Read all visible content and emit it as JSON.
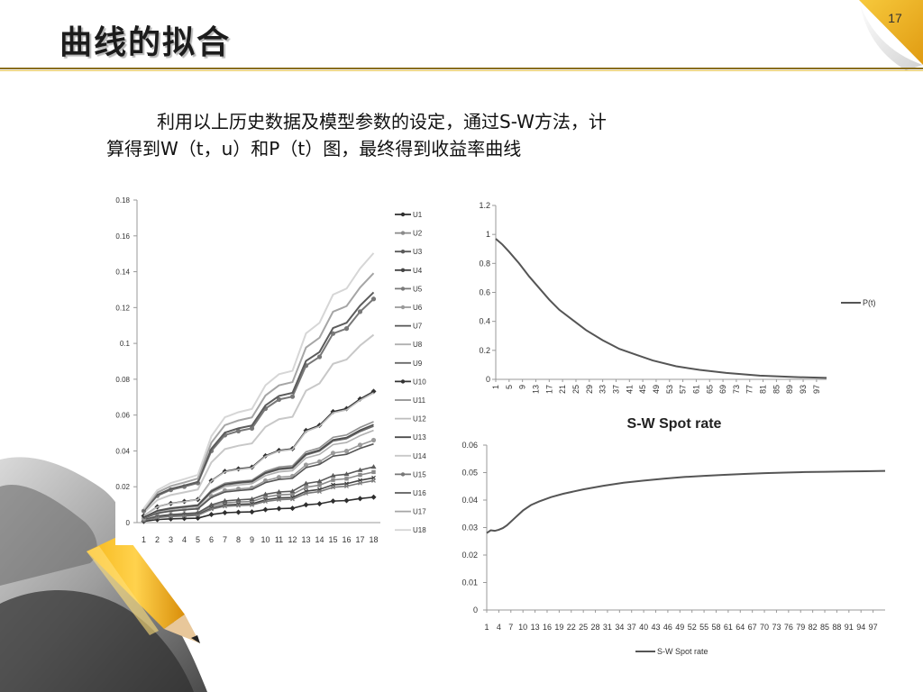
{
  "slide": {
    "title": "曲线的拟合",
    "page_number": "17",
    "paragraph_line1": "利用以上历史数据及模型参数的设定，通过S-W方法，计",
    "paragraph_line2": "算得到W（t，u）和P（t）图，最终得到收益率曲线"
  },
  "chart_data": [
    {
      "type": "line",
      "title": "",
      "xlabel": "",
      "ylabel": "",
      "ylim": [
        0,
        0.18
      ],
      "y_ticks": [
        "0",
        "0.02",
        "0.04",
        "0.06",
        "0.08",
        "0.1",
        "0.12",
        "0.14",
        "0.16",
        "0.18"
      ],
      "categories": [
        "1",
        "2",
        "3",
        "4",
        "5",
        "6",
        "7",
        "8",
        "9",
        "10",
        "11",
        "12",
        "13",
        "14",
        "15",
        "16",
        "17",
        "18"
      ],
      "legend_position": "right",
      "grid": false,
      "series": [
        {
          "name": "U1",
          "values": [
            0.0007,
            0.0017,
            0.0021,
            0.0023,
            0.0025,
            0.0045,
            0.0055,
            0.0058,
            0.006,
            0.0072,
            0.0078,
            0.008,
            0.0099,
            0.0105,
            0.012,
            0.0123,
            0.0134,
            0.0142
          ]
        },
        {
          "name": "U2",
          "values": [
            0.0014,
            0.0033,
            0.0041,
            0.0045,
            0.005,
            0.009,
            0.011,
            0.0115,
            0.0118,
            0.0143,
            0.0155,
            0.0158,
            0.0197,
            0.0209,
            0.0238,
            0.0245,
            0.0266,
            0.0282
          ]
        },
        {
          "name": "U3",
          "values": [
            0.0016,
            0.0037,
            0.0045,
            0.005,
            0.0055,
            0.0099,
            0.0121,
            0.0127,
            0.0131,
            0.0158,
            0.0171,
            0.0175,
            0.0218,
            0.023,
            0.0262,
            0.027,
            0.0293,
            0.0311
          ]
        },
        {
          "name": "U4",
          "values": [
            0.0013,
            0.003,
            0.0036,
            0.004,
            0.0044,
            0.008,
            0.0098,
            0.0102,
            0.0105,
            0.0127,
            0.0138,
            0.014,
            0.0175,
            0.0185,
            0.0211,
            0.0217,
            0.0236,
            0.025
          ]
        },
        {
          "name": "U5",
          "values": [
            0.0012,
            0.0028,
            0.0034,
            0.0037,
            0.0041,
            0.0075,
            0.0091,
            0.0095,
            0.0098,
            0.0118,
            0.0128,
            0.0131,
            0.0163,
            0.0173,
            0.0197,
            0.0203,
            0.022,
            0.0234
          ]
        },
        {
          "name": "U6",
          "values": [
            0.0024,
            0.0055,
            0.0067,
            0.0074,
            0.0081,
            0.0147,
            0.0179,
            0.0188,
            0.0194,
            0.0234,
            0.0253,
            0.0259,
            0.0322,
            0.034,
            0.0388,
            0.0399,
            0.0433,
            0.046
          ]
        },
        {
          "name": "U7",
          "values": [
            0.0023,
            0.0052,
            0.0064,
            0.0071,
            0.0077,
            0.014,
            0.0171,
            0.0179,
            0.0185,
            0.0223,
            0.0241,
            0.0247,
            0.0307,
            0.0325,
            0.0371,
            0.0381,
            0.0414,
            0.0439
          ]
        },
        {
          "name": "U8",
          "values": [
            0.0027,
            0.0062,
            0.0075,
            0.0083,
            0.0091,
            0.0165,
            0.0201,
            0.021,
            0.0217,
            0.0262,
            0.0283,
            0.029,
            0.0361,
            0.0381,
            0.0435,
            0.0447,
            0.0485,
            0.0515
          ]
        },
        {
          "name": "U9",
          "values": [
            0.0028,
            0.0065,
            0.0079,
            0.0087,
            0.0095,
            0.0172,
            0.021,
            0.022,
            0.0227,
            0.0274,
            0.0296,
            0.0303,
            0.0377,
            0.0399,
            0.0455,
            0.0468,
            0.0508,
            0.0538
          ]
        },
        {
          "name": "U10",
          "values": [
            0.0038,
            0.0088,
            0.0107,
            0.0118,
            0.0129,
            0.0234,
            0.0286,
            0.03,
            0.0309,
            0.0373,
            0.0403,
            0.0412,
            0.0514,
            0.0543,
            0.0619,
            0.0636,
            0.069,
            0.0732
          ]
        },
        {
          "name": "U11",
          "values": [
            0.0029,
            0.0068,
            0.0082,
            0.0091,
            0.0099,
            0.018,
            0.022,
            0.023,
            0.0237,
            0.0286,
            0.031,
            0.0317,
            0.0395,
            0.0417,
            0.0476,
            0.0489,
            0.0531,
            0.0563
          ]
        },
        {
          "name": "U12",
          "values": [
            0.0038,
            0.0087,
            0.0106,
            0.0116,
            0.0128,
            0.0232,
            0.0283,
            0.0296,
            0.0305,
            0.0369,
            0.0399,
            0.0408,
            0.0508,
            0.0537,
            0.0612,
            0.0629,
            0.0683,
            0.0724
          ]
        },
        {
          "name": "U13",
          "values": [
            0.0029,
            0.0066,
            0.008,
            0.0088,
            0.0097,
            0.0175,
            0.0213,
            0.0224,
            0.0231,
            0.0278,
            0.0301,
            0.0308,
            0.0383,
            0.0405,
            0.0462,
            0.0475,
            0.0516,
            0.0547
          ]
        },
        {
          "name": "U14",
          "values": [
            0.0055,
            0.0126,
            0.0154,
            0.0169,
            0.0185,
            0.0336,
            0.041,
            0.0429,
            0.0442,
            0.0534,
            0.0577,
            0.059,
            0.0736,
            0.0777,
            0.0886,
            0.091,
            0.0988,
            0.1048
          ]
        },
        {
          "name": "U15",
          "values": [
            0.0065,
            0.015,
            0.0183,
            0.0201,
            0.0221,
            0.04,
            0.0488,
            0.0511,
            0.0526,
            0.0636,
            0.0687,
            0.0703,
            0.0876,
            0.0925,
            0.1055,
            0.1083,
            0.1177,
            0.1248
          ]
        },
        {
          "name": "U16",
          "values": [
            0.0067,
            0.0155,
            0.0188,
            0.0207,
            0.0227,
            0.0412,
            0.0502,
            0.0526,
            0.0542,
            0.0654,
            0.0707,
            0.0724,
            0.0902,
            0.0952,
            0.1086,
            0.1115,
            0.1211,
            0.1285
          ]
        },
        {
          "name": "U17",
          "values": [
            0.0073,
            0.0168,
            0.0204,
            0.0224,
            0.0246,
            0.0446,
            0.0544,
            0.057,
            0.0587,
            0.0709,
            0.0766,
            0.0784,
            0.0977,
            0.1032,
            0.1177,
            0.1208,
            0.1312,
            0.1392
          ]
        },
        {
          "name": "U18",
          "values": [
            0.0079,
            0.0181,
            0.0221,
            0.0243,
            0.0266,
            0.0482,
            0.0588,
            0.0616,
            0.0634,
            0.0766,
            0.0828,
            0.0847,
            0.1056,
            0.1115,
            0.1272,
            0.1306,
            0.1418,
            0.1504
          ]
        }
      ]
    },
    {
      "type": "line",
      "title": "",
      "xlabel": "",
      "ylabel": "",
      "ylim": [
        0,
        1.2
      ],
      "y_ticks": [
        "0",
        "0.2",
        "0.4",
        "0.6",
        "0.8",
        "1",
        "1.2"
      ],
      "x_range": [
        1,
        100
      ],
      "x_tick_labels": [
        "1",
        "5",
        "9",
        "13",
        "17",
        "21",
        "25",
        "29",
        "33",
        "37",
        "41",
        "45",
        "49",
        "53",
        "57",
        "61",
        "65",
        "69",
        "73",
        "77",
        "81",
        "85",
        "89",
        "93",
        "97"
      ],
      "legend_position": "right",
      "grid": false,
      "series": [
        {
          "name": "P(t)",
          "x": [
            1,
            3,
            5,
            8,
            11,
            14,
            17,
            20,
            24,
            28,
            33,
            38,
            43,
            48,
            55,
            62,
            70,
            80,
            90,
            100
          ],
          "values": [
            0.97,
            0.93,
            0.88,
            0.8,
            0.71,
            0.63,
            0.55,
            0.48,
            0.41,
            0.34,
            0.27,
            0.21,
            0.17,
            0.13,
            0.09,
            0.065,
            0.044,
            0.026,
            0.016,
            0.01
          ]
        }
      ]
    },
    {
      "type": "line",
      "title": "S-W Spot rate",
      "xlabel": "",
      "ylabel": "",
      "ylim": [
        0,
        0.06
      ],
      "y_ticks": [
        "0",
        "0.01",
        "0.02",
        "0.03",
        "0.04",
        "0.05",
        "0.06"
      ],
      "x_range": [
        1,
        100
      ],
      "x_tick_labels": [
        "1",
        "4",
        "7",
        "10",
        "13",
        "16",
        "19",
        "22",
        "25",
        "28",
        "31",
        "34",
        "37",
        "40",
        "43",
        "46",
        "49",
        "52",
        "55",
        "58",
        "61",
        "64",
        "67",
        "70",
        "73",
        "76",
        "79",
        "82",
        "85",
        "88",
        "91",
        "94",
        "97"
      ],
      "legend_position": "bottom",
      "grid": false,
      "series": [
        {
          "name": "S-W Spot rate",
          "x": [
            1,
            2,
            3,
            4,
            5,
            6,
            8,
            10,
            12,
            14,
            17,
            20,
            25,
            30,
            35,
            40,
            45,
            50,
            55,
            60,
            65,
            70,
            75,
            80,
            85,
            90,
            95,
            100
          ],
          "values": [
            0.028,
            0.029,
            0.0288,
            0.0292,
            0.0298,
            0.0308,
            0.0335,
            0.0362,
            0.0382,
            0.0395,
            0.0411,
            0.0423,
            0.0439,
            0.0452,
            0.0463,
            0.0471,
            0.0478,
            0.0484,
            0.0488,
            0.0492,
            0.0495,
            0.0498,
            0.05,
            0.0502,
            0.0503,
            0.0504,
            0.0505,
            0.0506
          ]
        }
      ]
    }
  ]
}
